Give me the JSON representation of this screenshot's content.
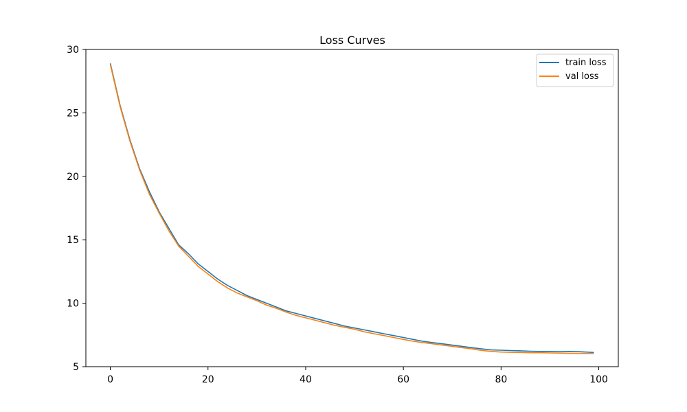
{
  "chart_data": {
    "type": "line",
    "title": "Loss Curves",
    "xlabel": "",
    "ylabel": "",
    "xlim": [
      -5,
      104
    ],
    "ylim": [
      5,
      30
    ],
    "xticks": [
      0,
      20,
      40,
      60,
      80,
      100
    ],
    "yticks": [
      5,
      10,
      15,
      20,
      25,
      30
    ],
    "grid": false,
    "legend": "top-right",
    "series": [
      {
        "name": "train loss",
        "color": "#1f77b4",
        "x": [
          0,
          2,
          4,
          6,
          8,
          10,
          12,
          14,
          16,
          18,
          20,
          22,
          24,
          26,
          28,
          30,
          32,
          34,
          36,
          38,
          40,
          42,
          44,
          46,
          48,
          50,
          52,
          54,
          56,
          58,
          60,
          62,
          64,
          66,
          68,
          70,
          72,
          74,
          76,
          78,
          80,
          82,
          84,
          86,
          88,
          90,
          92,
          94,
          96,
          99
        ],
        "y": [
          28.9,
          25.6,
          22.9,
          20.6,
          18.8,
          17.2,
          15.9,
          14.6,
          13.9,
          13.1,
          12.5,
          11.9,
          11.4,
          11.0,
          10.6,
          10.3,
          10.0,
          9.7,
          9.4,
          9.2,
          9.0,
          8.8,
          8.6,
          8.4,
          8.2,
          8.05,
          7.9,
          7.75,
          7.6,
          7.45,
          7.3,
          7.15,
          7.0,
          6.9,
          6.8,
          6.7,
          6.6,
          6.5,
          6.4,
          6.32,
          6.3,
          6.27,
          6.25,
          6.22,
          6.2,
          6.2,
          6.18,
          6.2,
          6.18,
          6.12
        ]
      },
      {
        "name": "val loss",
        "color": "#ff7f0e",
        "x": [
          0,
          2,
          4,
          6,
          8,
          10,
          12,
          14,
          16,
          18,
          20,
          22,
          24,
          26,
          28,
          30,
          32,
          34,
          36,
          38,
          40,
          42,
          44,
          46,
          48,
          50,
          52,
          54,
          56,
          58,
          60,
          62,
          64,
          66,
          68,
          70,
          72,
          74,
          76,
          78,
          80,
          82,
          84,
          86,
          88,
          90,
          92,
          94,
          96,
          99
        ],
        "y": [
          28.8,
          25.5,
          22.8,
          20.5,
          18.6,
          17.1,
          15.7,
          14.5,
          13.7,
          12.9,
          12.3,
          11.7,
          11.2,
          10.8,
          10.5,
          10.2,
          9.85,
          9.6,
          9.3,
          9.05,
          8.85,
          8.65,
          8.45,
          8.25,
          8.1,
          7.95,
          7.75,
          7.6,
          7.45,
          7.3,
          7.15,
          7.0,
          6.9,
          6.8,
          6.7,
          6.6,
          6.5,
          6.4,
          6.28,
          6.2,
          6.15,
          6.13,
          6.12,
          6.1,
          6.1,
          6.08,
          6.07,
          6.05,
          6.05,
          6.03
        ]
      }
    ]
  }
}
